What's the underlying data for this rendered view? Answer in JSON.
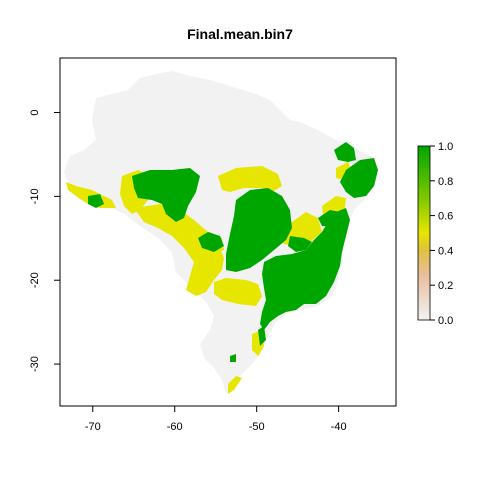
{
  "title": "Final.mean.bin7",
  "axes": {
    "x_ticks": [
      {
        "value": -70,
        "label": "-70"
      },
      {
        "value": -60,
        "label": "-60"
      },
      {
        "value": -50,
        "label": "-50"
      },
      {
        "value": -40,
        "label": "-40"
      }
    ],
    "y_ticks": [
      {
        "value": 0,
        "label": "0"
      },
      {
        "value": -10,
        "label": "-10"
      },
      {
        "value": -20,
        "label": "-20"
      },
      {
        "value": -30,
        "label": "-30"
      }
    ],
    "x_range": [
      -74,
      -33
    ],
    "y_range": [
      -35,
      6.5
    ]
  },
  "legend": {
    "range": [
      0,
      1
    ],
    "ticks": [
      {
        "value": 1.0,
        "label": "1.0"
      },
      {
        "value": 0.8,
        "label": "0.8"
      },
      {
        "value": 0.6,
        "label": "0.6"
      },
      {
        "value": 0.4,
        "label": "0.4"
      },
      {
        "value": 0.2,
        "label": "0.2"
      },
      {
        "value": 0.0,
        "label": "0.0"
      }
    ],
    "gradient_stops": [
      {
        "value": 0.0,
        "color": "#f2f2f2"
      },
      {
        "value": 0.25,
        "color": "#e8bfa0"
      },
      {
        "value": 0.4,
        "color": "#e0c040"
      },
      {
        "value": 0.5,
        "color": "#e6e600"
      },
      {
        "value": 0.7,
        "color": "#7fc800"
      },
      {
        "value": 1.0,
        "color": "#00a600"
      }
    ]
  },
  "colors": {
    "background_land": "#f2f2f2",
    "mid_suitability": "#e6e600",
    "high_suitability": "#00a600"
  }
}
